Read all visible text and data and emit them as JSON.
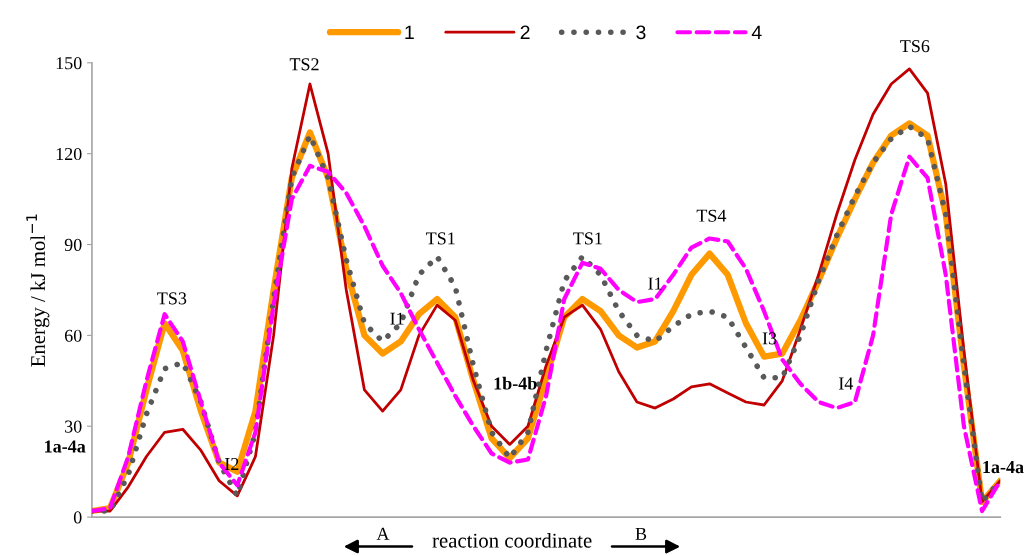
{
  "chart_data": {
    "type": "line",
    "categories": [
      null,
      null,
      null,
      null,
      null,
      null,
      null,
      null,
      null,
      null,
      null,
      null,
      null,
      null,
      null,
      null,
      null,
      null,
      null,
      null,
      null,
      null,
      null,
      null,
      null,
      null,
      null,
      null,
      null,
      null,
      null,
      null,
      null,
      null,
      null,
      null,
      null,
      null,
      null,
      null,
      null,
      null,
      null,
      null,
      null,
      null,
      null,
      null,
      null,
      null,
      null
    ],
    "ylabel": "Energy / kJ mol$^{−1}$",
    "xlabel": "reaction coordinate",
    "ylim": [
      0,
      150
    ],
    "yticks": [
      0,
      30,
      60,
      90,
      120,
      150
    ],
    "grid": false,
    "legend": "top",
    "marker": "none",
    "tick_labels": "y",
    "series": [
      {
        "name": "1",
        "color": "#ff9900",
        "line_style": "solid",
        "values": [
          2,
          3,
          18,
          42,
          64,
          55,
          35,
          18,
          15,
          35,
          75,
          112,
          127,
          112,
          82,
          60,
          54,
          58,
          67,
          72,
          66,
          45,
          26,
          19.5,
          26,
          46,
          66,
          72,
          68,
          60,
          56,
          58,
          68,
          80,
          87,
          80,
          64,
          53,
          54,
          65,
          78,
          92,
          105,
          117,
          126,
          130,
          126,
          100,
          50,
          5,
          12
        ]
      },
      {
        "name": "2",
        "color": "#c00000",
        "line_style": "solid",
        "values": [
          2,
          2,
          10,
          20,
          28,
          29,
          22,
          12,
          7,
          20,
          60,
          115,
          143,
          120,
          75,
          42,
          35,
          42,
          60,
          70,
          65,
          45,
          30,
          24,
          30,
          50,
          66,
          70,
          62,
          48,
          38,
          36,
          39,
          43,
          44,
          41,
          38,
          37,
          45,
          62,
          80,
          100,
          118,
          133,
          143,
          148,
          140,
          110,
          55,
          5,
          12
        ]
      },
      {
        "name": "3",
        "color": "#595959",
        "line_style": "dotted",
        "values": [
          2,
          2,
          14,
          34,
          49,
          51,
          38,
          18,
          7,
          28,
          72,
          112,
          126,
          112,
          85,
          64,
          58,
          64,
          80,
          86,
          76,
          50,
          28,
          19.5,
          28,
          55,
          78,
          86,
          80,
          68,
          60,
          58,
          63,
          67,
          68,
          66,
          56,
          46,
          46,
          60,
          78,
          93,
          106,
          117,
          125,
          129,
          125,
          100,
          50,
          5,
          12
        ]
      },
      {
        "name": "4",
        "color": "#ff00ff",
        "line_style": "dashed",
        "values": [
          2,
          3,
          20,
          45,
          67,
          58,
          38,
          18,
          10.5,
          28,
          70,
          105,
          116,
          114,
          107,
          96,
          83,
          74,
          62,
          51,
          40,
          30,
          21,
          18,
          19,
          40,
          72,
          84,
          82,
          75,
          71,
          72,
          80,
          89,
          92,
          91,
          82,
          68,
          52,
          44,
          38,
          36,
          38,
          60,
          100,
          119,
          112,
          80,
          30,
          2,
          12
        ]
      }
    ],
    "annotations": [
      "TS3",
      "I2",
      "TS2",
      "I1",
      "TS1",
      "1b-4b",
      "TS1",
      "I1",
      "TS4",
      "I3",
      "I4",
      "TS6",
      "1a-4a",
      "1a-4a",
      "A",
      "B"
    ]
  }
}
